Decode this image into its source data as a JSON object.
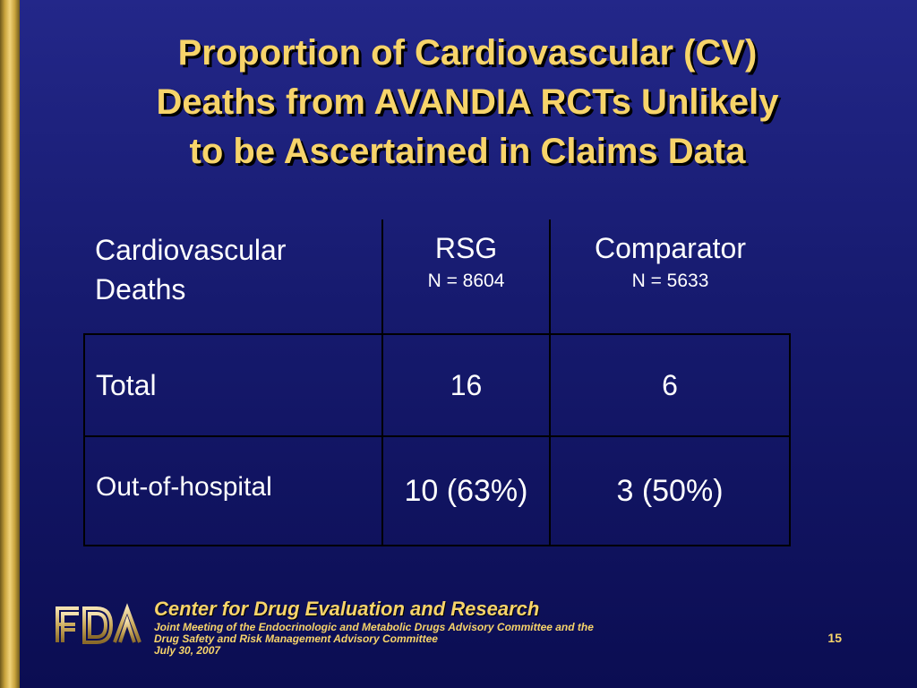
{
  "title": {
    "line1": "Proportion of Cardiovascular (CV)",
    "line2": "Deaths from AVANDIA RCTs Unlikely",
    "line3": "to be Ascertained in Claims Data"
  },
  "table": {
    "header": {
      "col1_line1": "Cardiovascular",
      "col1_line2": "Deaths",
      "col2_title": "RSG",
      "col2_sub": "N = 8604",
      "col3_title": "Comparator",
      "col3_sub": "N = 5633"
    },
    "rows": [
      {
        "label": "Total",
        "rsg": "16",
        "comparator": "6"
      },
      {
        "label": "Out-of-hospital",
        "rsg": "10 (63%)",
        "comparator": "3 (50%)"
      }
    ]
  },
  "logo": {
    "text": "FDA",
    "icon": "fda-logo"
  },
  "footer": {
    "center": "Center for Drug Evaluation and Research",
    "meeting_line1": "Joint Meeting of the Endocrinologic and Metabolic Drugs Advisory Committee and the",
    "meeting_line2": "Drug Safety and Risk Management Advisory Committee",
    "date": "July 30, 2007"
  },
  "page_number": "15",
  "colors": {
    "background": "#161a6e",
    "title": "#f7d46a",
    "accent_bar": "#c9a43d",
    "table_text": "#ffffff"
  }
}
